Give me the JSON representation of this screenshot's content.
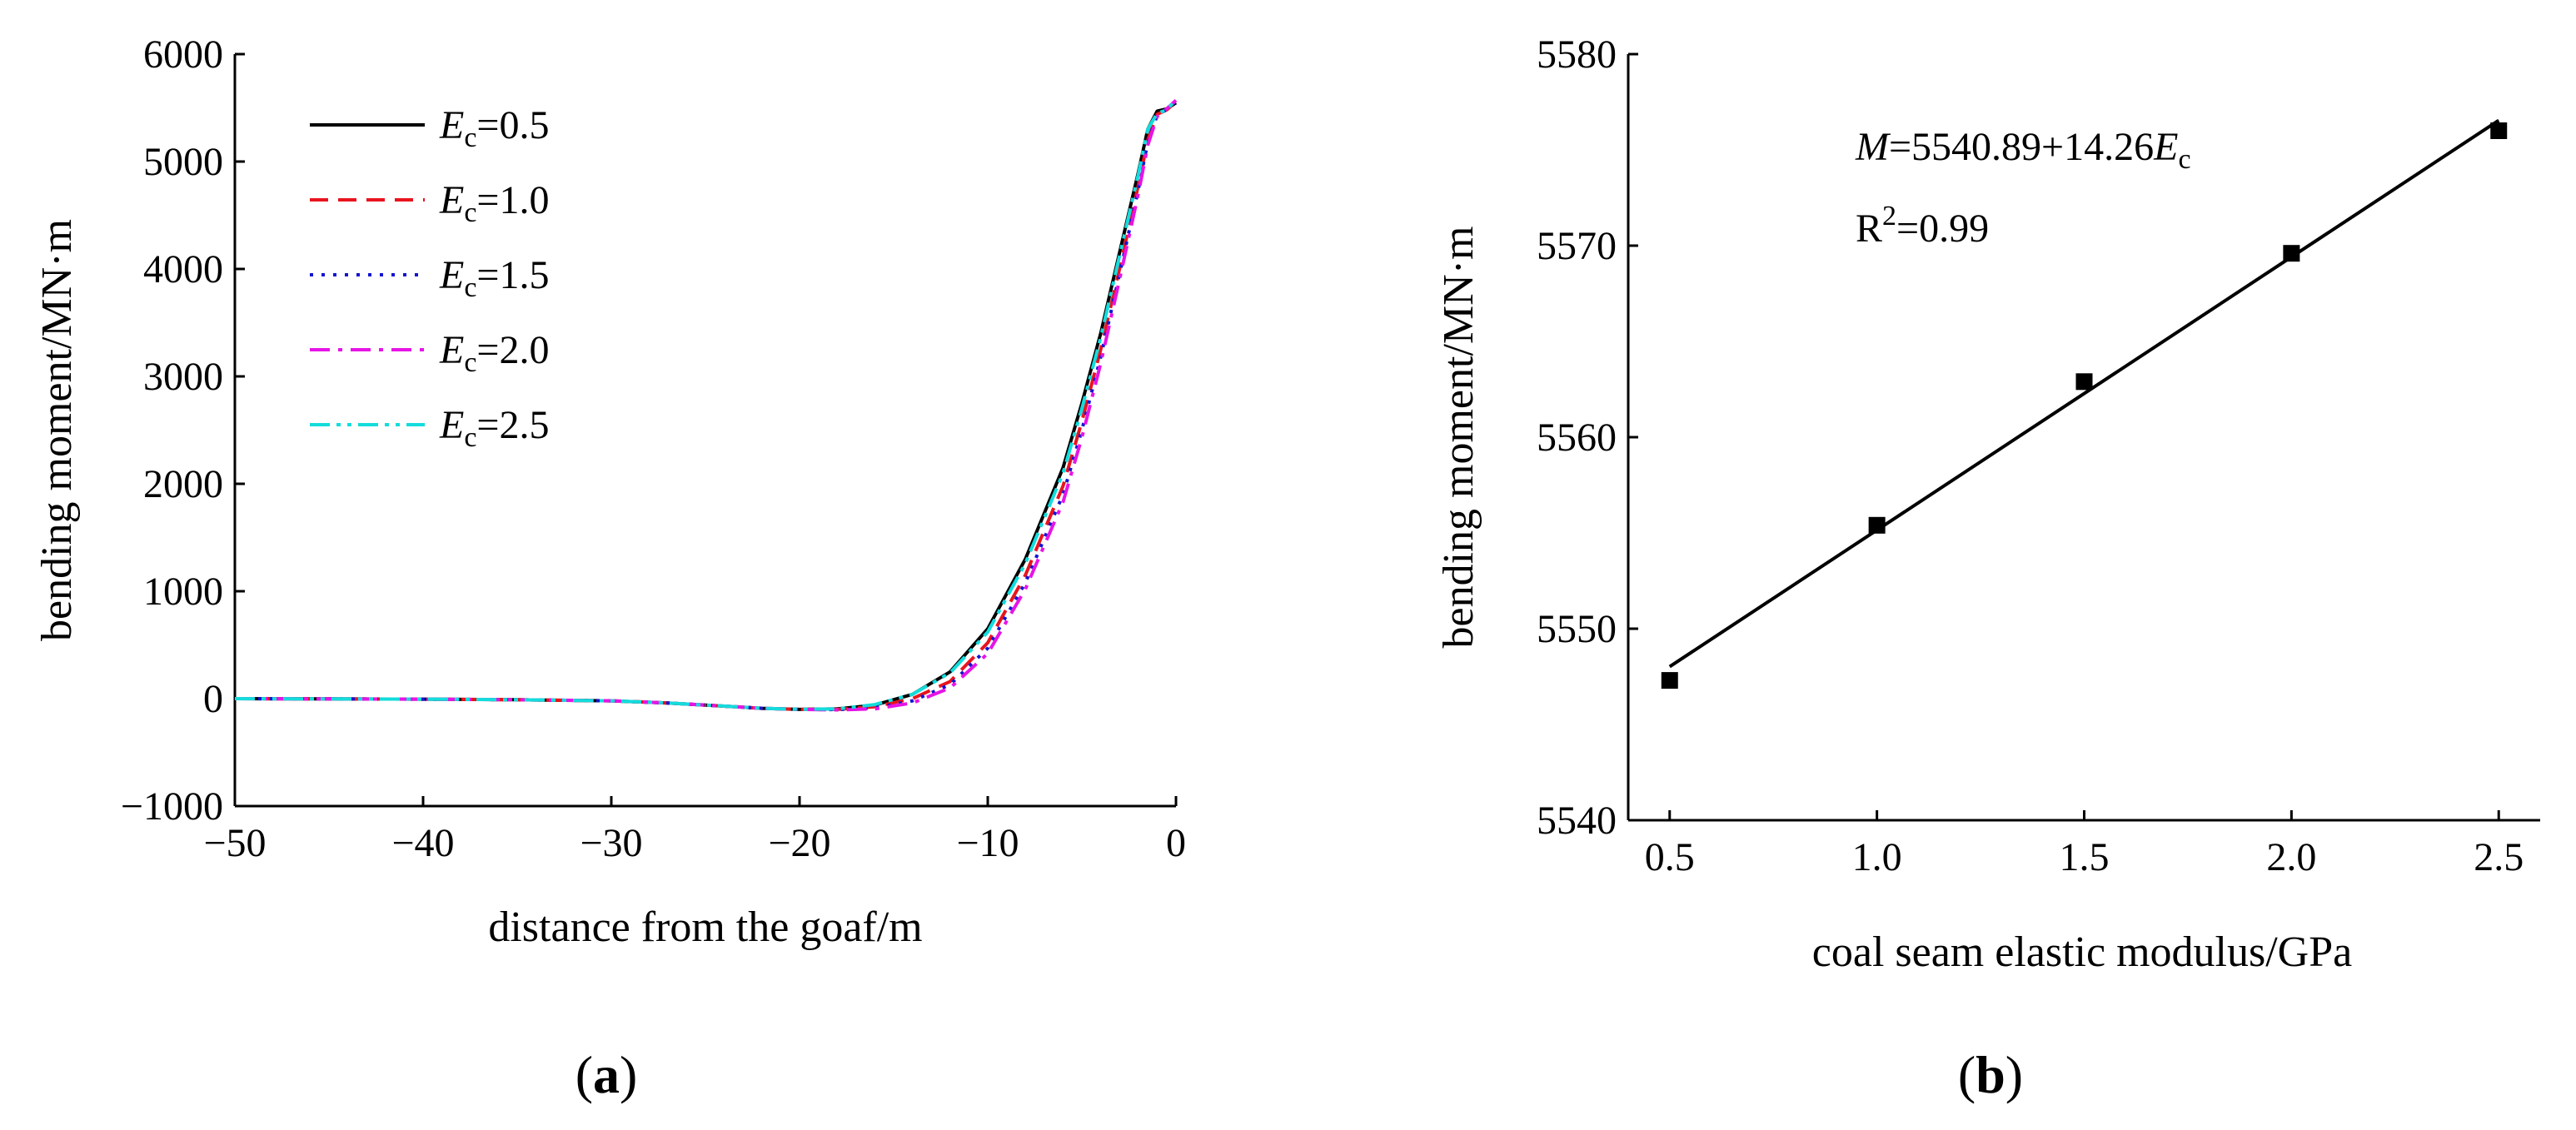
{
  "chart_data": [
    {
      "panel": "(a)",
      "panel_letter": "a",
      "type": "line",
      "xlabel": "distance from the goaf/m",
      "ylabel": "bending moment/MN·m",
      "xlim": [
        -50,
        0
      ],
      "ylim": [
        -1000,
        6000
      ],
      "xticks": [
        -50,
        -40,
        -30,
        -20,
        -10,
        0
      ],
      "xtick_labels": [
        "−50",
        "−40",
        "−30",
        "−20",
        "−10",
        "0"
      ],
      "yticks": [
        -1000,
        0,
        1000,
        2000,
        3000,
        4000,
        5000,
        6000
      ],
      "ytick_labels": [
        "−1000",
        "0",
        "1000",
        "2000",
        "3000",
        "4000",
        "5000",
        "6000"
      ],
      "legend_symbol": "E",
      "legend_sub": "c",
      "series": [
        {
          "name": "=0.5",
          "color": "#000000",
          "dash": "solid",
          "x": [
            -50,
            -45,
            -40,
            -35,
            -30,
            -27,
            -25,
            -22,
            -20,
            -18,
            -16,
            -14,
            -12,
            -10,
            -8,
            -6,
            -5,
            -4,
            -3,
            -2,
            -1.5,
            -1,
            -0.5,
            0
          ],
          "y": [
            0,
            -2,
            -5,
            -10,
            -20,
            -40,
            -60,
            -90,
            -100,
            -95,
            -60,
            40,
            250,
            650,
            1300,
            2150,
            2750,
            3400,
            4150,
            4900,
            5300,
            5470,
            5490,
            5547
          ]
        },
        {
          "name": "=1.0",
          "color": "#e8141e",
          "dash": "dashed",
          "x": [
            -50,
            -45,
            -40,
            -35,
            -30,
            -27,
            -25,
            -22,
            -20,
            -18,
            -16,
            -14,
            -12,
            -10,
            -8,
            -6,
            -5,
            -4,
            -3,
            -2,
            -1.5,
            -1,
            -0.5,
            0
          ],
          "y": [
            0,
            -2,
            -5,
            -10,
            -20,
            -40,
            -60,
            -90,
            -100,
            -100,
            -75,
            0,
            160,
            520,
            1150,
            1980,
            2580,
            3250,
            4000,
            4780,
            5200,
            5440,
            5480,
            5555
          ]
        },
        {
          "name": "=1.5",
          "color": "#1414d2",
          "dash": "dotted",
          "x": [
            -50,
            -45,
            -40,
            -35,
            -30,
            -27,
            -25,
            -22,
            -20,
            -18,
            -16,
            -14,
            -12,
            -10,
            -8,
            -6,
            -5,
            -4,
            -3,
            -2,
            -1.5,
            -1,
            -0.5,
            0
          ],
          "y": [
            0,
            -2,
            -5,
            -10,
            -20,
            -40,
            -60,
            -90,
            -100,
            -102,
            -85,
            -20,
            130,
            470,
            1080,
            1900,
            2500,
            3180,
            3950,
            4740,
            5180,
            5430,
            5485,
            5563
          ]
        },
        {
          "name": "=2.0",
          "color": "#e614e6",
          "dash": "dashdot",
          "x": [
            -50,
            -45,
            -40,
            -35,
            -30,
            -27,
            -25,
            -22,
            -20,
            -18,
            -16,
            -14,
            -12,
            -10,
            -8,
            -6,
            -5,
            -4,
            -3,
            -2,
            -1.5,
            -1,
            -0.5,
            0
          ],
          "y": [
            0,
            -2,
            -5,
            -10,
            -20,
            -40,
            -60,
            -90,
            -100,
            -105,
            -95,
            -40,
            100,
            420,
            1020,
            1830,
            2430,
            3120,
            3900,
            4700,
            5150,
            5420,
            5490,
            5570
          ]
        },
        {
          "name": "=2.5",
          "color": "#14dcdc",
          "dash": "dashdotdot",
          "x": [
            -50,
            -45,
            -40,
            -35,
            -30,
            -27,
            -25,
            -22,
            -20,
            -18,
            -16,
            -14,
            -12,
            -10,
            -8,
            -6,
            -5,
            -4,
            -3,
            -2,
            -1.5,
            -1,
            -0.5,
            0
          ],
          "y": [
            0,
            -2,
            -5,
            -10,
            -20,
            -40,
            -60,
            -90,
            -100,
            -95,
            -55,
            40,
            240,
            620,
            1260,
            2100,
            2700,
            3360,
            4120,
            4880,
            5300,
            5450,
            5480,
            5576
          ]
        }
      ]
    },
    {
      "panel": "(b)",
      "panel_letter": "b",
      "type": "scatter",
      "xlabel": "coal seam elastic modulus/GPa",
      "ylabel": "bending moment/MN·m",
      "xlim": [
        0.4,
        2.6
      ],
      "ylim": [
        5540,
        5580
      ],
      "xticks": [
        0.5,
        1.0,
        1.5,
        2.0,
        2.5
      ],
      "xtick_labels": [
        "0.5",
        "1.0",
        "1.5",
        "2.0",
        "2.5"
      ],
      "yticks": [
        5540,
        5550,
        5560,
        5570,
        5580
      ],
      "ytick_labels": [
        "5540",
        "5550",
        "5560",
        "5570",
        "5580"
      ],
      "points": {
        "x": [
          0.5,
          1.0,
          1.5,
          2.0,
          2.5
        ],
        "y": [
          5547.3,
          5555.4,
          5562.9,
          5569.6,
          5576.0
        ]
      },
      "fit": {
        "intercept": 5540.89,
        "slope": 14.26,
        "x_range": [
          0.5,
          2.5
        ]
      },
      "equation": {
        "lhs": "M",
        "mid": "=5540.89+14.26",
        "var": "E",
        "sub": "c"
      },
      "r2": {
        "prefix": "R",
        "sup": "2",
        "value": "=0.99"
      }
    }
  ]
}
